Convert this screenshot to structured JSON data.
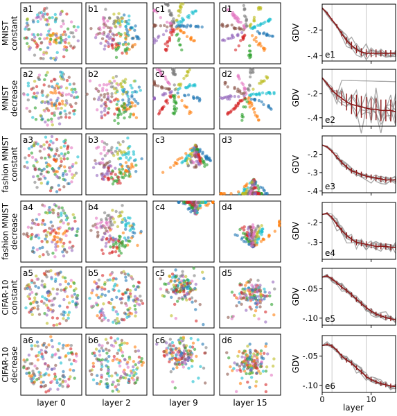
{
  "row_labels": [
    [
      "MNIST",
      "constant"
    ],
    [
      "MNIST",
      "decrease"
    ],
    [
      "fashion MNIST",
      "constant"
    ],
    [
      "fashion MNIST",
      "decrease"
    ],
    [
      "CIFAR-10",
      "constant"
    ],
    [
      "CIFAR-10",
      "decrease"
    ]
  ],
  "column_labels": [
    "layer 0",
    "layer 2",
    "layer 9",
    "layer 15"
  ],
  "scatter_panel_labels": [
    [
      "a1",
      "b1",
      "c1",
      "d1"
    ],
    [
      "a2",
      "b2",
      "c2",
      "d2"
    ],
    [
      "a3",
      "b3",
      "c3",
      "d3"
    ],
    [
      "a4",
      "b4",
      "c4",
      "d4"
    ],
    [
      "a5",
      "b5",
      "c5",
      "d5"
    ],
    [
      "a6",
      "b6",
      "c6",
      "d6"
    ]
  ],
  "class_colors": [
    "#1f77b4",
    "#ff7f0e",
    "#2ca02c",
    "#d62728",
    "#9467bd",
    "#8c564b",
    "#e377c2",
    "#7f7f7f",
    "#bcbd22",
    "#17becf"
  ],
  "gdv_line_color": "#8b1a1a",
  "chart_data": {
    "type": "line",
    "ylabel": "GDV",
    "xlabel": "layer",
    "xlim": [
      0,
      15
    ],
    "xticks": [
      0,
      10
    ],
    "vlines": [
      2,
      9,
      15
    ],
    "panels": [
      {
        "label": "e1",
        "ylim": [
          -0.44,
          0.0
        ],
        "yticks": [
          -0.2,
          -0.4
        ],
        "ytick_labels": [
          "-.2",
          "-.4"
        ],
        "x": [
          0,
          1,
          2,
          3,
          4,
          5,
          6,
          7,
          8,
          9,
          10,
          11,
          12,
          13,
          14,
          15
        ],
        "mean": [
          -0.03,
          -0.07,
          -0.12,
          -0.17,
          -0.23,
          -0.28,
          -0.32,
          -0.35,
          -0.37,
          -0.38,
          -0.38,
          -0.38,
          -0.38,
          -0.38,
          -0.38,
          -0.38
        ],
        "err": [
          0,
          0.01,
          0.01,
          0.015,
          0.02,
          0.025,
          0.03,
          0.03,
          0.03,
          0.03,
          0.03,
          0.03,
          0.025,
          0.025,
          0.025,
          0.025
        ]
      },
      {
        "label": "e2",
        "ylim": [
          -0.47,
          0.0
        ],
        "yticks": [
          -0.2,
          -0.4
        ],
        "ytick_labels": [
          "-.2",
          "-.4"
        ],
        "x": [
          0,
          1,
          2,
          3,
          4,
          5,
          6,
          7,
          8,
          9,
          10,
          11,
          12,
          13,
          14,
          15
        ],
        "mean": [
          -0.07,
          -0.12,
          -0.17,
          -0.21,
          -0.24,
          -0.27,
          -0.29,
          -0.3,
          -0.31,
          -0.32,
          -0.33,
          -0.33,
          -0.34,
          -0.34,
          -0.34,
          -0.35
        ],
        "err": [
          0,
          0.01,
          0.02,
          0.04,
          0.06,
          0.07,
          0.08,
          0.09,
          0.09,
          0.09,
          0.09,
          0.09,
          0.09,
          0.09,
          0.09,
          0.09
        ]
      },
      {
        "label": "e3",
        "ylim": [
          -0.41,
          -0.1
        ],
        "yticks": [
          -0.2,
          -0.3,
          -0.4
        ],
        "ytick_labels": [
          "-.2",
          "-.3",
          "-.4"
        ],
        "x": [
          0,
          1,
          2,
          3,
          4,
          5,
          6,
          7,
          8,
          9,
          10,
          11,
          12,
          13,
          14,
          15
        ],
        "mean": [
          -0.15,
          -0.16,
          -0.185,
          -0.215,
          -0.245,
          -0.27,
          -0.29,
          -0.3,
          -0.31,
          -0.32,
          -0.325,
          -0.33,
          -0.335,
          -0.34,
          -0.34,
          -0.34
        ],
        "err": [
          0,
          0.005,
          0.008,
          0.01,
          0.012,
          0.014,
          0.015,
          0.015,
          0.015,
          0.015,
          0.015,
          0.015,
          0.015,
          0.015,
          0.015,
          0.015
        ]
      },
      {
        "label": "e4",
        "ylim": [
          -0.385,
          -0.1
        ],
        "yticks": [
          -0.2,
          -0.3
        ],
        "ytick_labels": [
          "-.2",
          "-.3"
        ],
        "x": [
          0,
          1,
          2,
          3,
          4,
          5,
          6,
          7,
          8,
          9,
          10,
          11,
          12,
          13,
          14,
          15
        ],
        "mean": [
          -0.16,
          -0.155,
          -0.175,
          -0.21,
          -0.24,
          -0.265,
          -0.285,
          -0.3,
          -0.305,
          -0.31,
          -0.315,
          -0.32,
          -0.32,
          -0.32,
          -0.325,
          -0.325
        ],
        "err": [
          0,
          0.005,
          0.01,
          0.012,
          0.014,
          0.015,
          0.015,
          0.015,
          0.015,
          0.015,
          0.015,
          0.015,
          0.015,
          0.015,
          0.015,
          0.015
        ]
      },
      {
        "label": "e5",
        "ylim": [
          -0.112,
          -0.015
        ],
        "yticks": [
          -0.05,
          -0.1
        ],
        "ytick_labels": [
          "-.05",
          "-.10"
        ],
        "x": [
          0,
          1,
          2,
          3,
          4,
          5,
          6,
          7,
          8,
          9,
          10,
          11,
          12,
          13,
          14,
          15
        ],
        "mean": [
          -0.03,
          -0.028,
          -0.033,
          -0.04,
          -0.047,
          -0.053,
          -0.06,
          -0.068,
          -0.075,
          -0.082,
          -0.088,
          -0.093,
          -0.096,
          -0.099,
          -0.101,
          -0.103
        ],
        "err": [
          0,
          0.002,
          0.003,
          0.003,
          0.004,
          0.004,
          0.004,
          0.004,
          0.004,
          0.004,
          0.004,
          0.004,
          0.004,
          0.004,
          0.004,
          0.004
        ]
      },
      {
        "label": "e6",
        "ylim": [
          -0.112,
          -0.015
        ],
        "yticks": [
          -0.05,
          -0.1
        ],
        "ytick_labels": [
          "-.05",
          "-.10"
        ],
        "x": [
          0,
          1,
          2,
          3,
          4,
          5,
          6,
          7,
          8,
          9,
          10,
          11,
          12,
          13,
          14,
          15
        ],
        "mean": [
          -0.032,
          -0.03,
          -0.033,
          -0.04,
          -0.05,
          -0.057,
          -0.062,
          -0.07,
          -0.077,
          -0.085,
          -0.09,
          -0.094,
          -0.097,
          -0.099,
          -0.101,
          -0.102
        ],
        "err": [
          0,
          0.002,
          0.003,
          0.003,
          0.004,
          0.004,
          0.004,
          0.004,
          0.004,
          0.004,
          0.004,
          0.004,
          0.004,
          0.004,
          0.004,
          0.004
        ]
      }
    ]
  }
}
